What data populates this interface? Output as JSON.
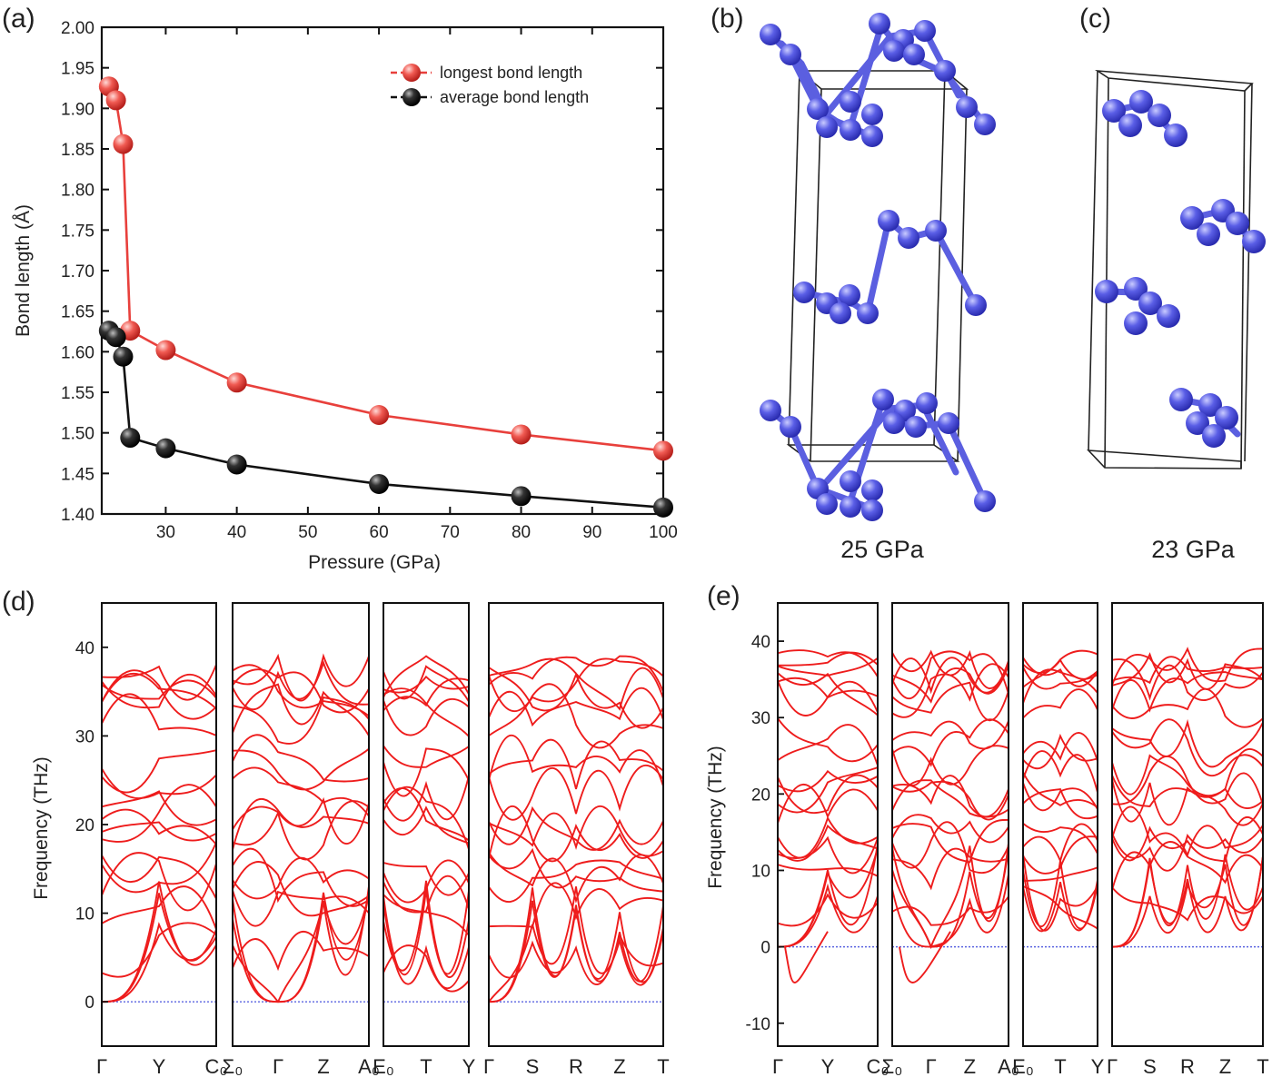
{
  "panel_letters": {
    "a": "(a)",
    "b": "(b)",
    "c": "(c)",
    "d": "(d)",
    "e": "(e)"
  },
  "structure_labels": {
    "b": "25 GPa",
    "c": "23 GPa"
  },
  "colors": {
    "longest": "#e8403c",
    "average": "#111111",
    "bands": "#ee1c1c",
    "zero_line": "#5a63e0",
    "atoms": "#4b4fd8"
  },
  "chart_data": [
    {
      "type": "line",
      "panel": "(a)",
      "xlabel": "Pressure (GPa)",
      "ylabel": "Bond length (Å)",
      "xlim": [
        21,
        100
      ],
      "ylim": [
        1.4,
        2.0
      ],
      "xticks": [
        "30",
        "40",
        "50",
        "60",
        "70",
        "80",
        "90",
        "100"
      ],
      "yticks": [
        "1.40",
        "1.45",
        "1.50",
        "1.55",
        "1.60",
        "1.65",
        "1.70",
        "1.75",
        "1.80",
        "1.85",
        "1.90",
        "1.95",
        "2.00"
      ],
      "legend_position": "top-right",
      "series": [
        {
          "name": "longest bond length",
          "color": "#e8403c",
          "x": [
            22,
            23,
            24,
            25,
            30,
            40,
            60,
            80,
            100
          ],
          "y": [
            1.927,
            1.91,
            1.856,
            1.626,
            1.602,
            1.562,
            1.522,
            1.498,
            1.478
          ]
        },
        {
          "name": "average bond length",
          "color": "#111111",
          "x": [
            22,
            23,
            24,
            25,
            30,
            40,
            60,
            80,
            100
          ],
          "y": [
            1.626,
            1.618,
            1.594,
            1.494,
            1.481,
            1.461,
            1.437,
            1.422,
            1.408
          ]
        }
      ]
    },
    {
      "type": "line",
      "panel": "(d)",
      "ylabel": "Frequency (THz)",
      "ylim": [
        -5,
        45
      ],
      "yticks": [
        "0",
        "10",
        "20",
        "30",
        "40"
      ],
      "segments": [
        [
          "Γ",
          "Y",
          "C₀"
        ],
        [
          "Σ₀",
          "Γ",
          "Z",
          "A₀"
        ],
        [
          "E₀",
          "T",
          "Y"
        ],
        [
          "Γ",
          "S",
          "R",
          "Z",
          "T"
        ]
      ]
    },
    {
      "type": "line",
      "panel": "(e)",
      "ylabel": "Frequency (THz)",
      "ylim": [
        -13,
        45
      ],
      "yticks": [
        "-10",
        "0",
        "10",
        "20",
        "30",
        "40"
      ],
      "segments": [
        [
          "Γ",
          "Y",
          "C₀"
        ],
        [
          "Σ₀",
          "Γ",
          "Z",
          "A₀"
        ],
        [
          "E₀",
          "T",
          "Y"
        ],
        [
          "Γ",
          "S",
          "R",
          "Z",
          "T"
        ]
      ]
    }
  ]
}
